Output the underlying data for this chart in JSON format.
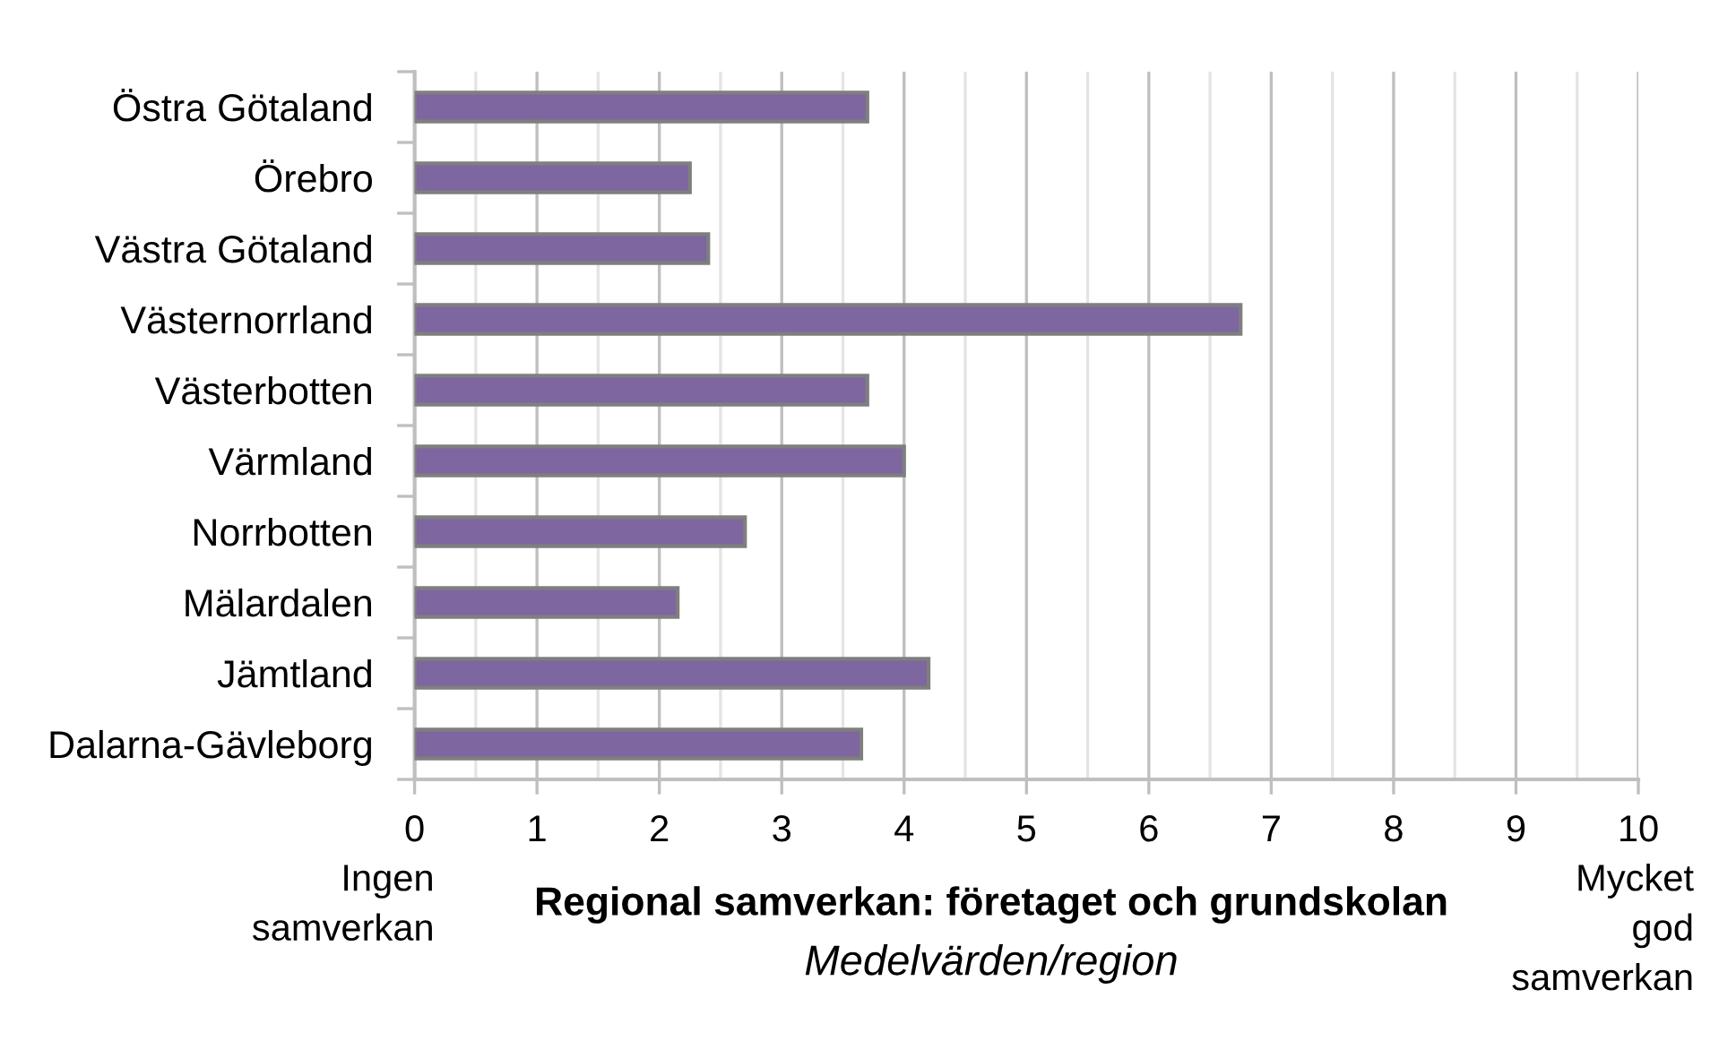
{
  "chart_data": {
    "type": "bar",
    "orientation": "horizontal",
    "title": "Regional samverkan: företaget och grundskolan",
    "subtitle": "Medelvärden/region",
    "categories": [
      "Östra Götaland",
      "Örebro",
      "Västra Götaland",
      "Västernorrland",
      "Västerbotten",
      "Värmland",
      "Norrbotten",
      "Mälardalen",
      "Jämtland",
      "Dalarna-Gävleborg"
    ],
    "values": [
      3.7,
      2.25,
      2.4,
      6.75,
      3.7,
      4.0,
      2.7,
      2.15,
      4.2,
      3.65
    ],
    "color": "#7e66a0",
    "xlim": [
      0,
      10
    ],
    "xticks": [
      0,
      {
        "value": 0.5,
        "label": null
      },
      1,
      {
        "value": 1.5,
        "label": null
      },
      2,
      {
        "value": 2.5,
        "label": null
      },
      3,
      {
        "value": 3.5,
        "label": null
      },
      4,
      {
        "value": 4.5,
        "label": null
      },
      5,
      {
        "value": 5.5,
        "label": null
      },
      6,
      {
        "value": 6.5,
        "label": null
      },
      7,
      {
        "value": 7.5,
        "label": null
      },
      8,
      {
        "value": 8.5,
        "label": null
      },
      9,
      {
        "value": 9.5,
        "label": null
      },
      10
    ],
    "grid": "x",
    "annotations": [
      "Ingen\nsamverkan",
      "Mycket\ngod\nsamverkan"
    ]
  }
}
